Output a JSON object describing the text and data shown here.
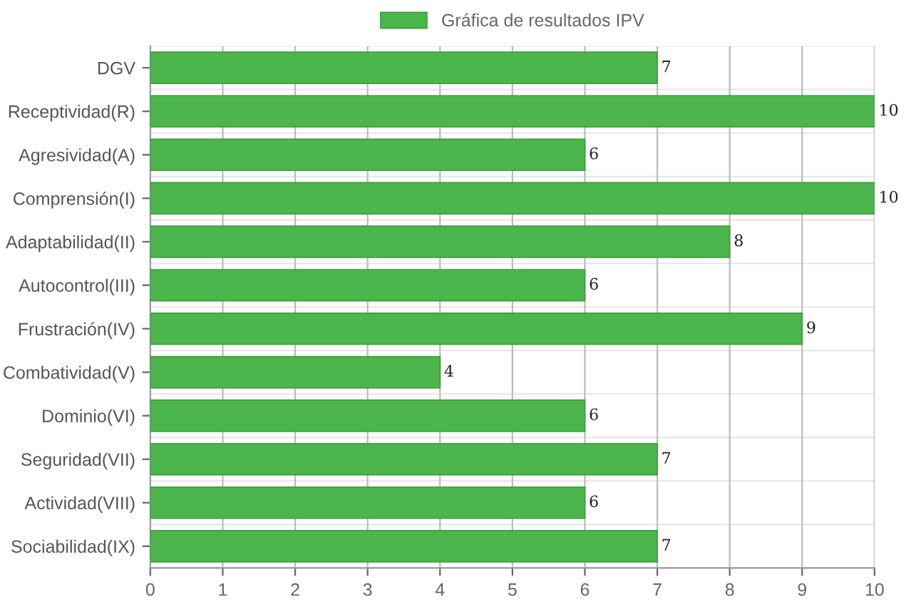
{
  "chart_data": {
    "type": "bar",
    "orientation": "horizontal",
    "categories": [
      "DGV",
      "Receptividad(R)",
      "Agresividad(A)",
      "Comprensión(I)",
      "Adaptabilidad(II)",
      "Autocontrol(III)",
      "Frustración(IV)",
      "Combatividad(V)",
      "Dominio(VI)",
      "Seguridad(VII)",
      "Actividad(VIII)",
      "Sociabilidad(IX)"
    ],
    "series": [
      {
        "name": "Gráfica de resultados IPV",
        "color": "#4cb54c",
        "values": [
          7,
          10,
          6,
          10,
          8,
          6,
          9,
          4,
          6,
          7,
          6,
          7
        ]
      }
    ],
    "xlim": [
      0,
      10
    ],
    "xticks": [
      0,
      1,
      2,
      3,
      4,
      5,
      6,
      7,
      8,
      9,
      10
    ],
    "grid": true,
    "legend": "top",
    "data_labels": true
  }
}
